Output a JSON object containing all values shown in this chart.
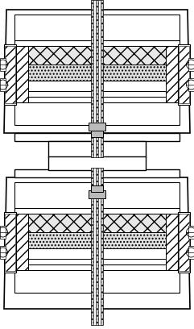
{
  "bg": "#ffffff",
  "lc": "#000000",
  "fw": 2.41,
  "fh": 4.08,
  "dpi": 100
}
